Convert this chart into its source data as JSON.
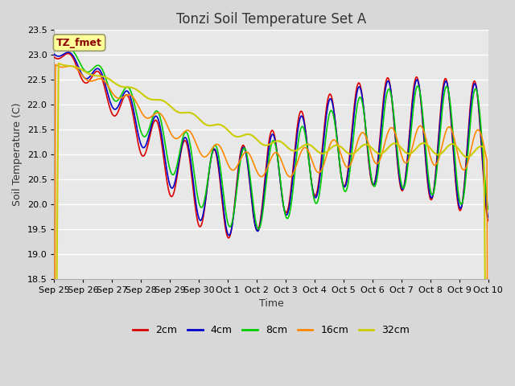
{
  "title": "Tonzi Soil Temperature Set A",
  "xlabel": "Time",
  "ylabel": "Soil Temperature (C)",
  "ylim": [
    18.5,
    23.5
  ],
  "annotation": "TZ_fmet",
  "legend_labels": [
    "2cm",
    "4cm",
    "8cm",
    "16cm",
    "32cm"
  ],
  "colors": [
    "#dd0000",
    "#0000cc",
    "#00cc00",
    "#ff8800",
    "#cccc00"
  ],
  "x_tick_labels": [
    "Sep 25",
    "Sep 26",
    "Sep 27",
    "Sep 28",
    "Sep 29",
    "Sep 30",
    "Oct 1",
    "Oct 2",
    "Oct 3",
    "Oct 4",
    "Oct 5",
    "Oct 6",
    "Oct 7",
    "Oct 8",
    "Oct 9",
    "Oct 10"
  ],
  "background_color": "#e8e8e8",
  "grid_color": "#ffffff",
  "title_fontsize": 12,
  "axis_fontsize": 9,
  "tick_fontsize": 8,
  "legend_fontsize": 9,
  "figsize": [
    6.4,
    4.8
  ],
  "dpi": 100
}
